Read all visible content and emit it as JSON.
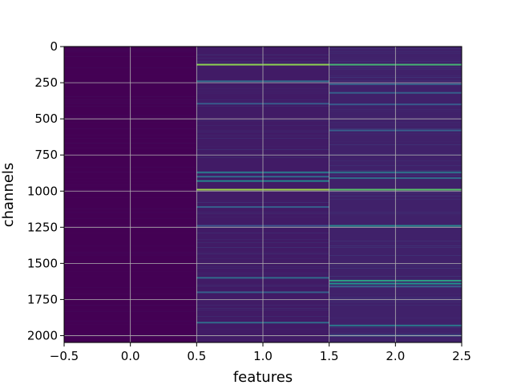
{
  "chart_data": {
    "type": "heatmap",
    "title": "",
    "xlabel": "features",
    "ylabel": "channels",
    "xlim": [
      -0.5,
      2.5
    ],
    "ylim": [
      2047.5,
      -0.5
    ],
    "y_inverted": true,
    "n_rows": 2048,
    "n_cols": 3,
    "colormap": "viridis",
    "grid": true,
    "x_ticks": [
      -0.5,
      0.0,
      0.5,
      1.0,
      1.5,
      2.0,
      2.5
    ],
    "x_tick_labels": [
      "−0.5",
      "0.0",
      "0.5",
      "1.0",
      "1.5",
      "2.0",
      "2.5"
    ],
    "y_ticks": [
      0,
      250,
      500,
      750,
      1000,
      1250,
      1500,
      1750,
      2000
    ],
    "y_tick_labels": [
      "0",
      "250",
      "500",
      "750",
      "1000",
      "1250",
      "1500",
      "1750",
      "2000"
    ],
    "columns": [
      {
        "feature": 0,
        "base_level": 0.0,
        "bright_rows": []
      },
      {
        "feature": 1,
        "base_level": 0.08,
        "bright_rows": [
          {
            "row": 125,
            "value": 0.82
          },
          {
            "row": 240,
            "value": 0.35
          },
          {
            "row": 395,
            "value": 0.28
          },
          {
            "row": 870,
            "value": 0.4
          },
          {
            "row": 900,
            "value": 0.35
          },
          {
            "row": 930,
            "value": 0.45
          },
          {
            "row": 990,
            "value": 0.85
          },
          {
            "row": 1110,
            "value": 0.3
          },
          {
            "row": 1240,
            "value": 0.25
          },
          {
            "row": 1600,
            "value": 0.35
          },
          {
            "row": 1700,
            "value": 0.3
          },
          {
            "row": 1910,
            "value": 0.35
          }
        ]
      },
      {
        "feature": 2,
        "base_level": 0.1,
        "bright_rows": [
          {
            "row": 125,
            "value": 0.65
          },
          {
            "row": 260,
            "value": 0.3
          },
          {
            "row": 320,
            "value": 0.3
          },
          {
            "row": 400,
            "value": 0.28
          },
          {
            "row": 580,
            "value": 0.3
          },
          {
            "row": 870,
            "value": 0.38
          },
          {
            "row": 910,
            "value": 0.35
          },
          {
            "row": 990,
            "value": 0.72
          },
          {
            "row": 1240,
            "value": 0.45
          },
          {
            "row": 1620,
            "value": 0.55
          },
          {
            "row": 1640,
            "value": 0.5
          },
          {
            "row": 1660,
            "value": 0.3
          },
          {
            "row": 1930,
            "value": 0.4
          },
          {
            "row": 2000,
            "value": 0.3
          }
        ]
      }
    ]
  }
}
